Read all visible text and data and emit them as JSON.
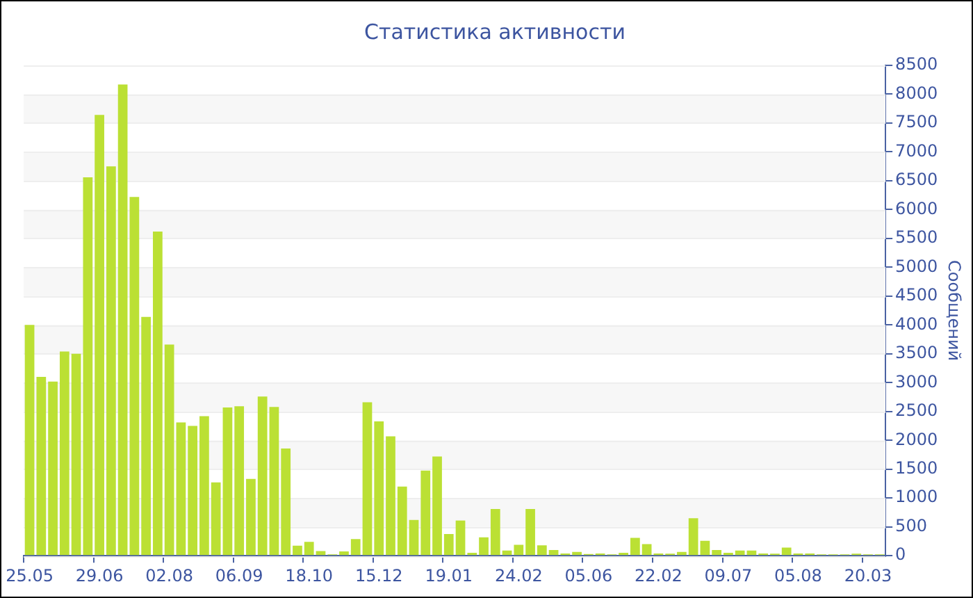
{
  "chart_data": {
    "type": "bar",
    "title": "Статистика активности",
    "ylabel": "Сообщений",
    "categories": [
      "25.05",
      null,
      null,
      null,
      null,
      null,
      "29.06",
      null,
      null,
      null,
      null,
      null,
      "02.08",
      null,
      null,
      null,
      null,
      null,
      "06.09",
      null,
      null,
      null,
      null,
      null,
      "18.10",
      null,
      null,
      null,
      null,
      null,
      "15.12",
      null,
      null,
      null,
      null,
      null,
      "19.01",
      null,
      null,
      null,
      null,
      null,
      "24.02",
      null,
      null,
      null,
      null,
      null,
      "05.06",
      null,
      null,
      null,
      null,
      null,
      "22.02",
      null,
      null,
      null,
      null,
      null,
      "09.07",
      null,
      null,
      null,
      null,
      null,
      "05.08",
      null,
      null,
      null,
      null,
      null,
      "20.03",
      null
    ],
    "values": [
      4000,
      3100,
      3020,
      3540,
      3500,
      6560,
      7640,
      6750,
      8170,
      6220,
      4140,
      5620,
      3660,
      2310,
      2250,
      2420,
      1270,
      2570,
      2590,
      1330,
      2760,
      2580,
      1860,
      175,
      240,
      80,
      25,
      75,
      290,
      2660,
      2330,
      2070,
      1200,
      620,
      1475,
      1720,
      375,
      610,
      50,
      320,
      810,
      90,
      190,
      810,
      180,
      100,
      40,
      65,
      30,
      40,
      25,
      50,
      310,
      200,
      40,
      35,
      65,
      650,
      260,
      100,
      50,
      90,
      90,
      40,
      35,
      140,
      40,
      40,
      25,
      25,
      25,
      35,
      25,
      25
    ],
    "color": "#bbe034",
    "ylim": [
      0,
      8500
    ],
    "yticks": [
      0,
      500,
      1000,
      1500,
      2000,
      2500,
      3000,
      3500,
      4000,
      4500,
      5000,
      5500,
      6000,
      6500,
      7000,
      7500,
      8000,
      8500
    ],
    "grid": "y",
    "legend": false
  }
}
